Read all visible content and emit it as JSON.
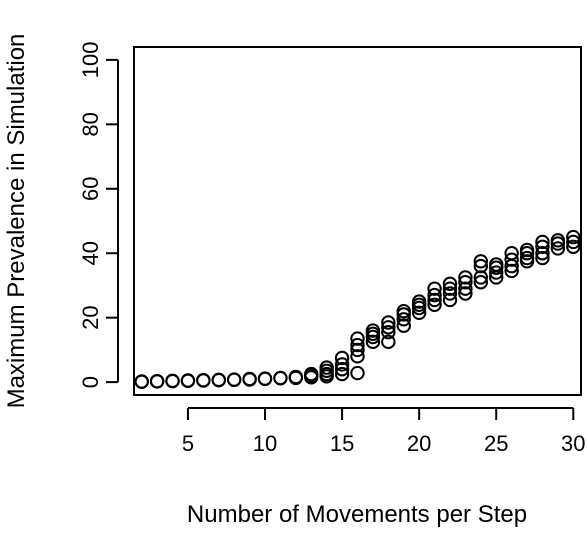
{
  "chart_data": {
    "type": "scatter",
    "title": "",
    "xlabel": "Number of Movements per Step",
    "ylabel": "Maximum Prevalence in Simulation",
    "xlim": [
      1.5,
      30.5
    ],
    "ylim": [
      -4,
      104
    ],
    "xticks": [
      5,
      10,
      15,
      20,
      25,
      30
    ],
    "yticks": [
      0,
      20,
      40,
      60,
      80,
      100
    ],
    "grid": false,
    "legend": "none",
    "marker": "open-circle",
    "marker_color": "#000000",
    "series": [
      {
        "points": [
          [
            2,
            0.1
          ],
          [
            2,
            0.2
          ],
          [
            3,
            0.2
          ],
          [
            3,
            0.3
          ],
          [
            4,
            0.3
          ],
          [
            4,
            0.4
          ],
          [
            5,
            0.4
          ],
          [
            5,
            0.5
          ],
          [
            6,
            0.5
          ],
          [
            6,
            0.6
          ],
          [
            7,
            0.6
          ],
          [
            7,
            0.7
          ],
          [
            8,
            0.7
          ],
          [
            8,
            0.8
          ],
          [
            9,
            0.8
          ],
          [
            9,
            1.0
          ],
          [
            10,
            1.0
          ],
          [
            10,
            1.1
          ],
          [
            11,
            1.2
          ],
          [
            11,
            1.3
          ],
          [
            12,
            1.3
          ],
          [
            12,
            1.6
          ],
          [
            13,
            1.5
          ],
          [
            13,
            2.0
          ],
          [
            13,
            2.5
          ],
          [
            14,
            1.8
          ],
          [
            14,
            2.5
          ],
          [
            14,
            3.5
          ],
          [
            14,
            4.5
          ],
          [
            15,
            2.5
          ],
          [
            15,
            4.0
          ],
          [
            15,
            5.5
          ],
          [
            15,
            7.5
          ],
          [
            16,
            2.8
          ],
          [
            16,
            8.0
          ],
          [
            16,
            10.0
          ],
          [
            16,
            11.5
          ],
          [
            16,
            13.5
          ],
          [
            17,
            12.5
          ],
          [
            17,
            14.0
          ],
          [
            17,
            15.0
          ],
          [
            17,
            16.0
          ],
          [
            18,
            12.5
          ],
          [
            18,
            15.5
          ],
          [
            18,
            17.0
          ],
          [
            18,
            18.5
          ],
          [
            19,
            17.5
          ],
          [
            19,
            19.5
          ],
          [
            19,
            21.0
          ],
          [
            19,
            22.0
          ],
          [
            20,
            21.5
          ],
          [
            20,
            23.0
          ],
          [
            20,
            24.0
          ],
          [
            20,
            25.0
          ],
          [
            21,
            24.0
          ],
          [
            21,
            25.5
          ],
          [
            21,
            27.0
          ],
          [
            21,
            29.0
          ],
          [
            22,
            25.5
          ],
          [
            22,
            27.5
          ],
          [
            22,
            29.0
          ],
          [
            22,
            30.5
          ],
          [
            23,
            27.5
          ],
          [
            23,
            29.0
          ],
          [
            23,
            31.0
          ],
          [
            23,
            32.5
          ],
          [
            24,
            31.0
          ],
          [
            24,
            32.5
          ],
          [
            24,
            36.0
          ],
          [
            24,
            37.5
          ],
          [
            25,
            32.5
          ],
          [
            25,
            34.0
          ],
          [
            25,
            35.5
          ],
          [
            25,
            36.5
          ],
          [
            26,
            34.5
          ],
          [
            26,
            36.0
          ],
          [
            26,
            38.0
          ],
          [
            26,
            40.0
          ],
          [
            27,
            37.5
          ],
          [
            27,
            38.5
          ],
          [
            27,
            40.0
          ],
          [
            27,
            41.0
          ],
          [
            28,
            38.5
          ],
          [
            28,
            40.0
          ],
          [
            28,
            42.0
          ],
          [
            28,
            43.5
          ],
          [
            29,
            41.5
          ],
          [
            29,
            43.0
          ],
          [
            29,
            44.0
          ],
          [
            30,
            42.0
          ],
          [
            30,
            43.5
          ],
          [
            30,
            45.0
          ]
        ]
      }
    ]
  }
}
